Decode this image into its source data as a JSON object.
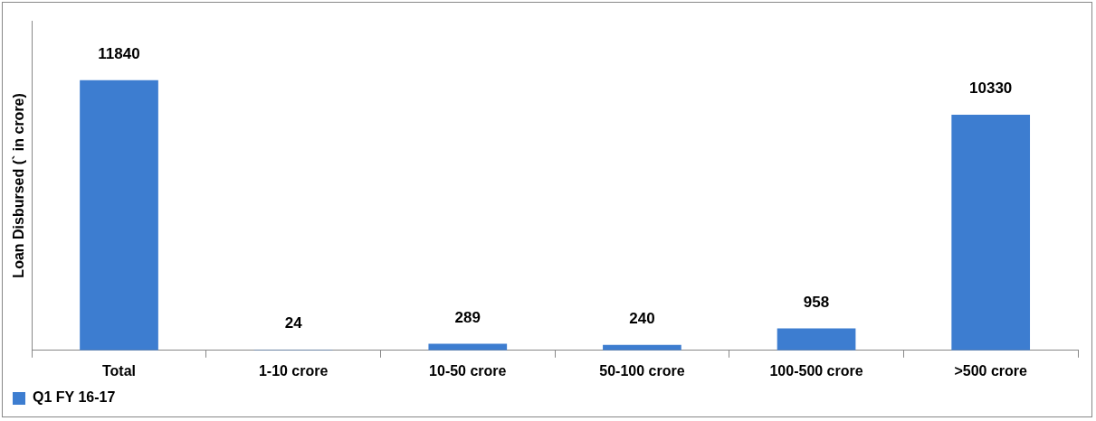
{
  "chart_data": {
    "type": "bar",
    "ylabel": "Loan Disbursed (` in crore)",
    "categories": [
      "Total",
      "1-10 crore",
      "10-50 crore",
      "50-100 crore",
      "100-500 crore",
      ">500 crore"
    ],
    "series": [
      {
        "name": "Q1 FY 16-17",
        "color": "#3d7dd0",
        "values": [
          11840,
          24,
          289,
          240,
          958,
          10330
        ]
      }
    ],
    "data_labels": true,
    "legend": "bottom",
    "grid": false,
    "tick_labels": "x"
  }
}
